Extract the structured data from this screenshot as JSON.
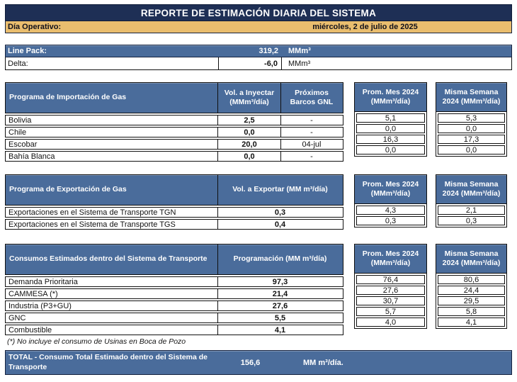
{
  "colors": {
    "navy": "#1e2f55",
    "gold": "#e9bd6e",
    "steel_blue": "#4a6c9b",
    "border": "#101010"
  },
  "title": "REPORTE DE ESTIMACIÓN DIARIA DEL SISTEMA",
  "operativo": {
    "label": "Día Operativo:",
    "date": "miércoles, 2 de julio de 2025"
  },
  "linepack": {
    "label": "Line Pack:",
    "value": "319,2",
    "unit": "MMm³"
  },
  "delta": {
    "label": "Delta:",
    "value": "-6,0",
    "unit": "MMm³"
  },
  "importacion": {
    "header": {
      "label": "Programa de Importación de Gas",
      "vol": "Vol. a Inyectar (MMm³/día)",
      "barcos": "Próximos Barcos GNL",
      "prom": "Prom. Mes 2024 (MMm³/día)",
      "misma": "Misma Semana 2024 (MMm³/día)"
    },
    "rows": [
      {
        "label": "Bolivia",
        "vol": "2,5",
        "barcos": "-",
        "prom": "5,1",
        "misma": "5,3"
      },
      {
        "label": "Chile",
        "vol": "0,0",
        "barcos": "-",
        "prom": "0,0",
        "misma": "0,0"
      },
      {
        "label": "Escobar",
        "vol": "20,0",
        "barcos": "04-jul",
        "prom": "16,3",
        "misma": "17,3"
      },
      {
        "label": "Bahía Blanca",
        "vol": "0,0",
        "barcos": "-",
        "prom": "0,0",
        "misma": "0,0"
      }
    ]
  },
  "exportacion": {
    "header": {
      "label": "Programa de Exportación de Gas",
      "vol": "Vol. a Exportar (MM m³/día)",
      "prom": "Prom. Mes 2024 (MMm³/día)",
      "misma": "Misma Semana 2024 (MMm³/día)"
    },
    "rows": [
      {
        "label": "Exportaciones en el Sistema de Transporte TGN",
        "vol": "0,3",
        "prom": "4,3",
        "misma": "2,1"
      },
      {
        "label": "Exportaciones en el Sistema de Transporte TGS",
        "vol": "0,4",
        "prom": "0,3",
        "misma": "0,3"
      }
    ]
  },
  "consumos": {
    "header": {
      "label": "Consumos Estimados dentro del Sistema de Transporte",
      "vol": "Programación (MM m³/día)",
      "prom": "Prom. Mes 2024 (MMm³/día)",
      "misma": "Misma Semana 2024 (MMm³/día)"
    },
    "rows": [
      {
        "label": "Demanda Prioritaria",
        "vol": "97,3",
        "prom": "76,4",
        "misma": "80,6"
      },
      {
        "label": "CAMMESA (*)",
        "vol": "21,4",
        "prom": "27,6",
        "misma": "24,4"
      },
      {
        "label": "Industria (P3+GU)",
        "vol": "27,6",
        "prom": "30,7",
        "misma": "29,5"
      },
      {
        "label": "GNC",
        "vol": "5,5",
        "prom": "5,7",
        "misma": "5,8"
      },
      {
        "label": "Combustible",
        "vol": "4,1",
        "prom": "4,0",
        "misma": "4,1"
      }
    ]
  },
  "footnote": "(*) No incluye el consumo de Usinas en Boca de Pozo",
  "total": {
    "label": "TOTAL - Consumo Total Estimado dentro del Sistema de Transporte",
    "value": "156,6",
    "unit": "MM m³/día."
  }
}
